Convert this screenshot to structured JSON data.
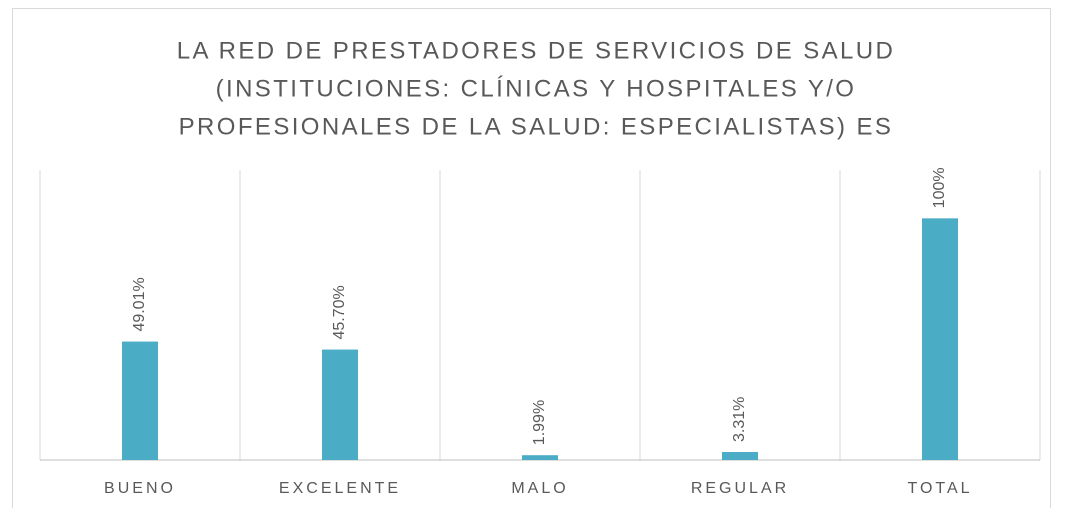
{
  "chart_data": {
    "type": "bar",
    "title": [
      "LA RED DE PRESTADORES DE SERVICIOS DE SALUD",
      "(INSTITUCIONES: CLÍNICAS Y HOSPITALES Y/O",
      "PROFESIONALES DE LA SALUD: ESPECIALISTAS) ES"
    ],
    "categories": [
      "BUENO",
      "EXCELENTE",
      "MALO",
      "REGULAR",
      "TOTAL"
    ],
    "values": [
      49.01,
      45.7,
      1.99,
      3.31,
      100
    ],
    "value_labels": [
      "49.01%",
      "45.70%",
      "1.99%",
      "3.31%",
      "100%"
    ],
    "color": "#4bacc6",
    "ylim": [
      0,
      120
    ]
  }
}
